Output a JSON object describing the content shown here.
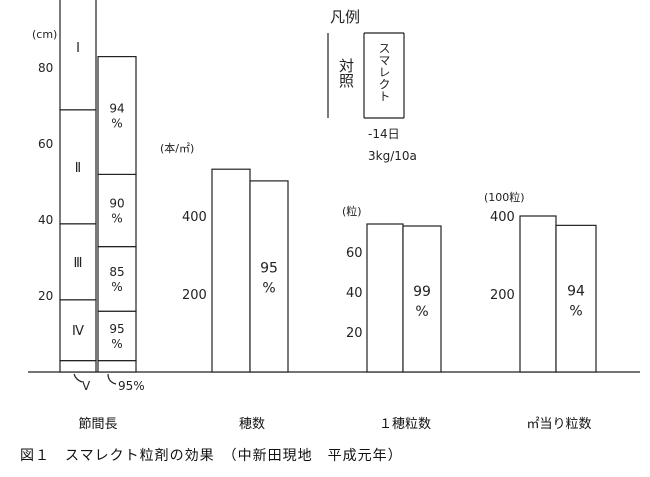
{
  "chart_data": {
    "type": "bar",
    "caption": "図１　スマレクト粒剤の効果　（中新田現地　平成元年）",
    "legend": {
      "title": "凡例",
      "control": "対照",
      "treatment": "スマレクト",
      "note1": "-14日",
      "note2": "3kg/10a"
    },
    "panels": [
      {
        "key": "culm",
        "xlabel": "節間長",
        "unit": "(cm)",
        "ticks": [
          20,
          40,
          60,
          80
        ],
        "segment_labels": [
          "Ⅰ",
          "Ⅱ",
          "Ⅲ",
          "Ⅳ"
        ],
        "extra_segment_label": "Ⅴ",
        "control_segments": [
          3,
          16,
          20,
          30,
          33
        ],
        "treatment_segments": [
          3,
          13,
          17,
          19,
          31
        ],
        "treatment_pct": [
          "94\n%",
          "90\n%",
          "85\n%",
          "95\n%"
        ],
        "extra_pct": "95%"
      },
      {
        "key": "panicles",
        "xlabel": "穂数",
        "unit": "(本/㎡)",
        "ticks": [
          200,
          400
        ],
        "control": 520,
        "treatment": 490,
        "pct": "95\n%"
      },
      {
        "key": "grains",
        "xlabel": "１穂粒数",
        "unit": "(粒)",
        "ticks": [
          20,
          40,
          60
        ],
        "control": 74,
        "treatment": 73,
        "pct": "99\n%"
      },
      {
        "key": "grains_per_m2",
        "xlabel": "㎡当り粒数",
        "unit": "(100粒)",
        "ticks": [
          200,
          400
        ],
        "control": 400,
        "treatment": 376,
        "pct": "94\n%"
      }
    ]
  }
}
